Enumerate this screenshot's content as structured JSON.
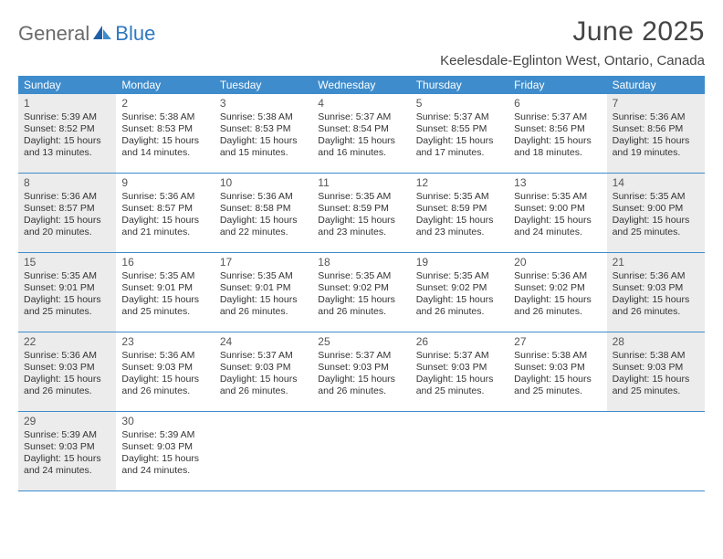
{
  "logo": {
    "general": "General",
    "blue": "Blue"
  },
  "title": "June 2025",
  "location": "Keelesdale-Eglinton West, Ontario, Canada",
  "colors": {
    "header_bg": "#3e8ccc",
    "header_text": "#ffffff",
    "shaded_bg": "#ececec",
    "border": "#3e8ccc",
    "logo_gray": "#6b6b6b",
    "logo_blue": "#2f78c2"
  },
  "layout": {
    "columns": 7,
    "rows": 5,
    "cell_min_height": 86
  },
  "dow": [
    "Sunday",
    "Monday",
    "Tuesday",
    "Wednesday",
    "Thursday",
    "Friday",
    "Saturday"
  ],
  "weeks": [
    [
      {
        "num": "1",
        "shaded": true,
        "sunrise": "Sunrise: 5:39 AM",
        "sunset": "Sunset: 8:52 PM",
        "dl1": "Daylight: 15 hours",
        "dl2": "and 13 minutes."
      },
      {
        "num": "2",
        "shaded": false,
        "sunrise": "Sunrise: 5:38 AM",
        "sunset": "Sunset: 8:53 PM",
        "dl1": "Daylight: 15 hours",
        "dl2": "and 14 minutes."
      },
      {
        "num": "3",
        "shaded": false,
        "sunrise": "Sunrise: 5:38 AM",
        "sunset": "Sunset: 8:53 PM",
        "dl1": "Daylight: 15 hours",
        "dl2": "and 15 minutes."
      },
      {
        "num": "4",
        "shaded": false,
        "sunrise": "Sunrise: 5:37 AM",
        "sunset": "Sunset: 8:54 PM",
        "dl1": "Daylight: 15 hours",
        "dl2": "and 16 minutes."
      },
      {
        "num": "5",
        "shaded": false,
        "sunrise": "Sunrise: 5:37 AM",
        "sunset": "Sunset: 8:55 PM",
        "dl1": "Daylight: 15 hours",
        "dl2": "and 17 minutes."
      },
      {
        "num": "6",
        "shaded": false,
        "sunrise": "Sunrise: 5:37 AM",
        "sunset": "Sunset: 8:56 PM",
        "dl1": "Daylight: 15 hours",
        "dl2": "and 18 minutes."
      },
      {
        "num": "7",
        "shaded": true,
        "sunrise": "Sunrise: 5:36 AM",
        "sunset": "Sunset: 8:56 PM",
        "dl1": "Daylight: 15 hours",
        "dl2": "and 19 minutes."
      }
    ],
    [
      {
        "num": "8",
        "shaded": true,
        "sunrise": "Sunrise: 5:36 AM",
        "sunset": "Sunset: 8:57 PM",
        "dl1": "Daylight: 15 hours",
        "dl2": "and 20 minutes."
      },
      {
        "num": "9",
        "shaded": false,
        "sunrise": "Sunrise: 5:36 AM",
        "sunset": "Sunset: 8:57 PM",
        "dl1": "Daylight: 15 hours",
        "dl2": "and 21 minutes."
      },
      {
        "num": "10",
        "shaded": false,
        "sunrise": "Sunrise: 5:36 AM",
        "sunset": "Sunset: 8:58 PM",
        "dl1": "Daylight: 15 hours",
        "dl2": "and 22 minutes."
      },
      {
        "num": "11",
        "shaded": false,
        "sunrise": "Sunrise: 5:35 AM",
        "sunset": "Sunset: 8:59 PM",
        "dl1": "Daylight: 15 hours",
        "dl2": "and 23 minutes."
      },
      {
        "num": "12",
        "shaded": false,
        "sunrise": "Sunrise: 5:35 AM",
        "sunset": "Sunset: 8:59 PM",
        "dl1": "Daylight: 15 hours",
        "dl2": "and 23 minutes."
      },
      {
        "num": "13",
        "shaded": false,
        "sunrise": "Sunrise: 5:35 AM",
        "sunset": "Sunset: 9:00 PM",
        "dl1": "Daylight: 15 hours",
        "dl2": "and 24 minutes."
      },
      {
        "num": "14",
        "shaded": true,
        "sunrise": "Sunrise: 5:35 AM",
        "sunset": "Sunset: 9:00 PM",
        "dl1": "Daylight: 15 hours",
        "dl2": "and 25 minutes."
      }
    ],
    [
      {
        "num": "15",
        "shaded": true,
        "sunrise": "Sunrise: 5:35 AM",
        "sunset": "Sunset: 9:01 PM",
        "dl1": "Daylight: 15 hours",
        "dl2": "and 25 minutes."
      },
      {
        "num": "16",
        "shaded": false,
        "sunrise": "Sunrise: 5:35 AM",
        "sunset": "Sunset: 9:01 PM",
        "dl1": "Daylight: 15 hours",
        "dl2": "and 25 minutes."
      },
      {
        "num": "17",
        "shaded": false,
        "sunrise": "Sunrise: 5:35 AM",
        "sunset": "Sunset: 9:01 PM",
        "dl1": "Daylight: 15 hours",
        "dl2": "and 26 minutes."
      },
      {
        "num": "18",
        "shaded": false,
        "sunrise": "Sunrise: 5:35 AM",
        "sunset": "Sunset: 9:02 PM",
        "dl1": "Daylight: 15 hours",
        "dl2": "and 26 minutes."
      },
      {
        "num": "19",
        "shaded": false,
        "sunrise": "Sunrise: 5:35 AM",
        "sunset": "Sunset: 9:02 PM",
        "dl1": "Daylight: 15 hours",
        "dl2": "and 26 minutes."
      },
      {
        "num": "20",
        "shaded": false,
        "sunrise": "Sunrise: 5:36 AM",
        "sunset": "Sunset: 9:02 PM",
        "dl1": "Daylight: 15 hours",
        "dl2": "and 26 minutes."
      },
      {
        "num": "21",
        "shaded": true,
        "sunrise": "Sunrise: 5:36 AM",
        "sunset": "Sunset: 9:03 PM",
        "dl1": "Daylight: 15 hours",
        "dl2": "and 26 minutes."
      }
    ],
    [
      {
        "num": "22",
        "shaded": true,
        "sunrise": "Sunrise: 5:36 AM",
        "sunset": "Sunset: 9:03 PM",
        "dl1": "Daylight: 15 hours",
        "dl2": "and 26 minutes."
      },
      {
        "num": "23",
        "shaded": false,
        "sunrise": "Sunrise: 5:36 AM",
        "sunset": "Sunset: 9:03 PM",
        "dl1": "Daylight: 15 hours",
        "dl2": "and 26 minutes."
      },
      {
        "num": "24",
        "shaded": false,
        "sunrise": "Sunrise: 5:37 AM",
        "sunset": "Sunset: 9:03 PM",
        "dl1": "Daylight: 15 hours",
        "dl2": "and 26 minutes."
      },
      {
        "num": "25",
        "shaded": false,
        "sunrise": "Sunrise: 5:37 AM",
        "sunset": "Sunset: 9:03 PM",
        "dl1": "Daylight: 15 hours",
        "dl2": "and 26 minutes."
      },
      {
        "num": "26",
        "shaded": false,
        "sunrise": "Sunrise: 5:37 AM",
        "sunset": "Sunset: 9:03 PM",
        "dl1": "Daylight: 15 hours",
        "dl2": "and 25 minutes."
      },
      {
        "num": "27",
        "shaded": false,
        "sunrise": "Sunrise: 5:38 AM",
        "sunset": "Sunset: 9:03 PM",
        "dl1": "Daylight: 15 hours",
        "dl2": "and 25 minutes."
      },
      {
        "num": "28",
        "shaded": true,
        "sunrise": "Sunrise: 5:38 AM",
        "sunset": "Sunset: 9:03 PM",
        "dl1": "Daylight: 15 hours",
        "dl2": "and 25 minutes."
      }
    ],
    [
      {
        "num": "29",
        "shaded": true,
        "sunrise": "Sunrise: 5:39 AM",
        "sunset": "Sunset: 9:03 PM",
        "dl1": "Daylight: 15 hours",
        "dl2": "and 24 minutes."
      },
      {
        "num": "30",
        "shaded": false,
        "sunrise": "Sunrise: 5:39 AM",
        "sunset": "Sunset: 9:03 PM",
        "dl1": "Daylight: 15 hours",
        "dl2": "and 24 minutes."
      },
      {
        "empty": true
      },
      {
        "empty": true
      },
      {
        "empty": true
      },
      {
        "empty": true
      },
      {
        "empty": true
      }
    ]
  ]
}
